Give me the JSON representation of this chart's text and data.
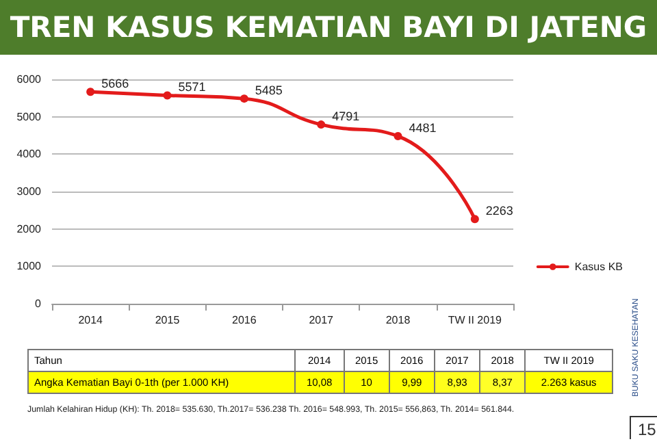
{
  "chart_data": [
    {
      "type": "line",
      "title": "TREN KASUS KEMATIAN BAYI DI JATENG",
      "categories": [
        "2014",
        "2015",
        "2016",
        "2017",
        "2018",
        "TW II 2019"
      ],
      "series": [
        {
          "name": "Kasus KB",
          "color": "#e31b1b",
          "values": [
            5666,
            5571,
            5485,
            4791,
            4481,
            2263
          ]
        }
      ],
      "ylim": [
        0,
        6000
      ],
      "yticks": [
        0,
        1000,
        2000,
        3000,
        4000,
        5000,
        6000
      ],
      "grid": "y",
      "legend": "right",
      "marker": "circle",
      "line_style": "solid",
      "data_labels": true,
      "annotations": [
        "Jumlah Kelahiran Hidup (KH): Th. 2018= 535.630, Th.2017= 536.238 Th. 2016= 548.993, Th. 2015= 556,863, Th. 2014= 561.844.",
        "BUKU SAKU KESEHATAN",
        "15"
      ]
    },
    {
      "type": "heatmap",
      "ylabel": "Tahun",
      "categories": [
        "2014",
        "2015",
        "2016",
        "2017",
        "2018",
        "TW II 2019"
      ],
      "y_categories": [
        "Angka Kematian Bayi 0-1th (per 1.000 KH)"
      ],
      "cells": [
        [
          10.08,
          10,
          9.99,
          8.93,
          8.37,
          null
        ]
      ],
      "cell_labels": [
        [
          "10,08",
          "10",
          "9,99",
          "8,93",
          "8,37",
          "2.263 kasus"
        ]
      ]
    }
  ]
}
